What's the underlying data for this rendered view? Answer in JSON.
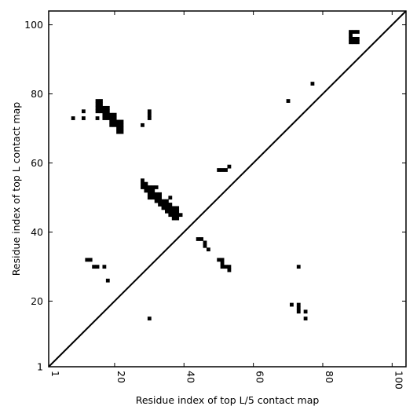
{
  "chart_data": {
    "type": "heatmap",
    "title": "",
    "xlabel": "Residue index of top L/5 contact map",
    "ylabel": "Residue index of top L contact map",
    "xlim": [
      1,
      104
    ],
    "ylim": [
      1,
      104
    ],
    "xticks": [
      1,
      20,
      40,
      60,
      80,
      100
    ],
    "yticks": [
      1,
      20,
      40,
      60,
      80,
      100
    ],
    "x_tick_rotation": "vertical",
    "diagonal": [
      [
        1,
        1
      ],
      [
        104,
        104
      ]
    ],
    "colors": {
      "cell": "#000000",
      "diagonal": "#000000",
      "background": "#ffffff"
    },
    "grid": false,
    "cells": [
      [
        8,
        73
      ],
      [
        11,
        73
      ],
      [
        11,
        75
      ],
      [
        15,
        73
      ],
      [
        15,
        75
      ],
      [
        15,
        76
      ],
      [
        15,
        77
      ],
      [
        15,
        78
      ],
      [
        16,
        75
      ],
      [
        16,
        76
      ],
      [
        16,
        77
      ],
      [
        16,
        78
      ],
      [
        17,
        73
      ],
      [
        17,
        74
      ],
      [
        17,
        75
      ],
      [
        17,
        76
      ],
      [
        18,
        73
      ],
      [
        18,
        74
      ],
      [
        18,
        75
      ],
      [
        18,
        76
      ],
      [
        19,
        71
      ],
      [
        19,
        72
      ],
      [
        19,
        73
      ],
      [
        19,
        74
      ],
      [
        20,
        71
      ],
      [
        20,
        72
      ],
      [
        20,
        73
      ],
      [
        20,
        74
      ],
      [
        21,
        69
      ],
      [
        21,
        70
      ],
      [
        21,
        71
      ],
      [
        21,
        72
      ],
      [
        22,
        69
      ],
      [
        22,
        70
      ],
      [
        22,
        71
      ],
      [
        22,
        72
      ],
      [
        28,
        71
      ],
      [
        30,
        73
      ],
      [
        30,
        74
      ],
      [
        30,
        75
      ],
      [
        28,
        53
      ],
      [
        28,
        54
      ],
      [
        28,
        55
      ],
      [
        29,
        52
      ],
      [
        29,
        53
      ],
      [
        29,
        54
      ],
      [
        30,
        50
      ],
      [
        30,
        51
      ],
      [
        30,
        52
      ],
      [
        30,
        53
      ],
      [
        31,
        50
      ],
      [
        31,
        51
      ],
      [
        31,
        52
      ],
      [
        31,
        53
      ],
      [
        32,
        53
      ],
      [
        32,
        49
      ],
      [
        32,
        50
      ],
      [
        32,
        51
      ],
      [
        33,
        49
      ],
      [
        33,
        50
      ],
      [
        33,
        51
      ],
      [
        33,
        48
      ],
      [
        34,
        47
      ],
      [
        34,
        48
      ],
      [
        34,
        49
      ],
      [
        35,
        46
      ],
      [
        35,
        47
      ],
      [
        35,
        48
      ],
      [
        35,
        49
      ],
      [
        36,
        45
      ],
      [
        36,
        46
      ],
      [
        36,
        47
      ],
      [
        36,
        48
      ],
      [
        36,
        50
      ],
      [
        37,
        44
      ],
      [
        37,
        45
      ],
      [
        37,
        46
      ],
      [
        37,
        47
      ],
      [
        38,
        44
      ],
      [
        38,
        45
      ],
      [
        38,
        46
      ],
      [
        38,
        47
      ],
      [
        39,
        45
      ],
      [
        44,
        38
      ],
      [
        45,
        38
      ],
      [
        46,
        36
      ],
      [
        46,
        37
      ],
      [
        47,
        35
      ],
      [
        50,
        32
      ],
      [
        51,
        30
      ],
      [
        51,
        31
      ],
      [
        51,
        32
      ],
      [
        52,
        30
      ],
      [
        53,
        29
      ],
      [
        53,
        30
      ],
      [
        50,
        58
      ],
      [
        51,
        58
      ],
      [
        52,
        58
      ],
      [
        53,
        59
      ],
      [
        12,
        32
      ],
      [
        13,
        32
      ],
      [
        14,
        30
      ],
      [
        15,
        30
      ],
      [
        17,
        30
      ],
      [
        18,
        26
      ],
      [
        30,
        15
      ],
      [
        70,
        78
      ],
      [
        77,
        83
      ],
      [
        71,
        19
      ],
      [
        73,
        17
      ],
      [
        73,
        18
      ],
      [
        73,
        19
      ],
      [
        73,
        30
      ],
      [
        75,
        15
      ],
      [
        75,
        17
      ],
      [
        88,
        95
      ],
      [
        88,
        96
      ],
      [
        88,
        97
      ],
      [
        88,
        98
      ],
      [
        89,
        95
      ],
      [
        89,
        96
      ],
      [
        89,
        98
      ],
      [
        90,
        95
      ],
      [
        90,
        96
      ],
      [
        90,
        98
      ]
    ]
  }
}
